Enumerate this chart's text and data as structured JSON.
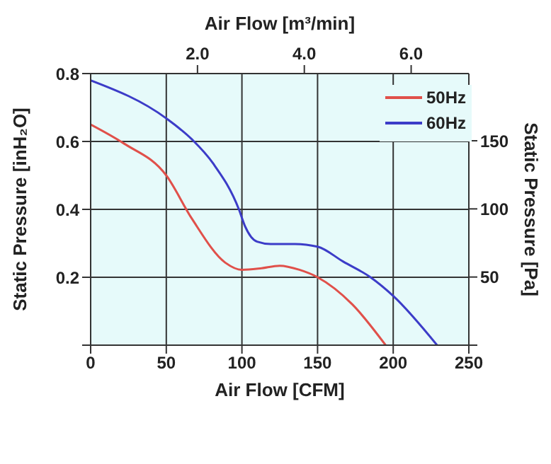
{
  "chart_data": {
    "type": "line",
    "xlabel": "Air Flow  [CFM]",
    "x2label": "Air Flow  [m³/min]",
    "ylabel": "Static Pressure [inH₂O]",
    "y2label": "Static Pressure [Pa]",
    "xlim": [
      0,
      250
    ],
    "xticks": [
      0,
      50,
      100,
      150,
      200,
      250
    ],
    "x2lim": [
      0,
      7.08
    ],
    "x2ticks": [
      {
        "value": 2,
        "label": "2.0"
      },
      {
        "value": 4,
        "label": "4.0"
      },
      {
        "value": 6,
        "label": "6.0"
      }
    ],
    "ylim": [
      0,
      0.8
    ],
    "yticks": [
      {
        "value": 0,
        "label": null
      },
      0.2,
      0.4,
      0.6,
      0.8
    ],
    "y2lim": [
      0,
      199.3
    ],
    "y2ticks": [
      {
        "value": 0,
        "label": null
      },
      50,
      100,
      150
    ],
    "grid": true,
    "legend": "top right",
    "marker": "none",
    "line_style": "solid",
    "series": [
      {
        "name": "50Hz",
        "color": "#e0504a",
        "x": [
          0,
          22,
          50,
          67,
          89,
          100,
          112,
          125,
          138,
          150,
          173,
          195
        ],
        "values": [
          0.65,
          0.594,
          0.5,
          0.372,
          0.243,
          0.222,
          0.226,
          0.234,
          0.222,
          0.2,
          0.12,
          0
        ]
      },
      {
        "name": "60Hz",
        "color": "#3c3cc8",
        "x": [
          0,
          50,
          67,
          81,
          98,
          102,
          110,
          119,
          135,
          150,
          167,
          185,
          200,
          229
        ],
        "values": [
          0.78,
          0.668,
          0.606,
          0.535,
          0.4,
          0.351,
          0.305,
          0.298,
          0.298,
          0.29,
          0.246,
          0.2,
          0.145,
          0
        ]
      }
    ]
  }
}
